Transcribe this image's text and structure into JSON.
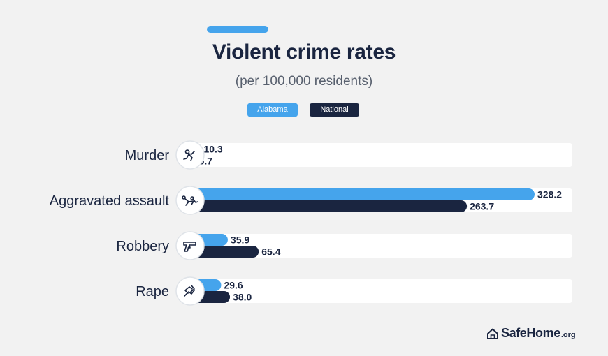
{
  "header": {
    "title": "Violent crime rates",
    "subtitle": "(per 100,000 residents)"
  },
  "legend": {
    "alabama": "Alabama",
    "national": "National"
  },
  "brand": {
    "name": "SafeHome",
    "tld": ".org"
  },
  "colors": {
    "alabama": "#45a4ec",
    "national": "#1a2540",
    "track": "#ffffff",
    "text": "#1a2540"
  },
  "chart_data": {
    "type": "bar",
    "orientation": "horizontal",
    "title": "Violent crime rates",
    "subtitle": "(per 100,000 residents)",
    "categories": [
      "Murder",
      "Aggravated assault",
      "Robbery",
      "Rape"
    ],
    "icons": [
      "murder-icon",
      "assault-icon",
      "gun-icon",
      "rape-icon"
    ],
    "series": [
      {
        "name": "Alabama",
        "values": [
          10.3,
          328.2,
          35.9,
          29.6
        ]
      },
      {
        "name": "National",
        "values": [
          5.7,
          263.7,
          65.4,
          38.0
        ]
      }
    ],
    "value_labels": {
      "Alabama": [
        "10.3",
        "328.2",
        "35.9",
        "29.6"
      ],
      "National": [
        "5.7",
        "263.7",
        "65.4",
        "38.0"
      ]
    },
    "legend_position": "top-center",
    "grid": false
  }
}
